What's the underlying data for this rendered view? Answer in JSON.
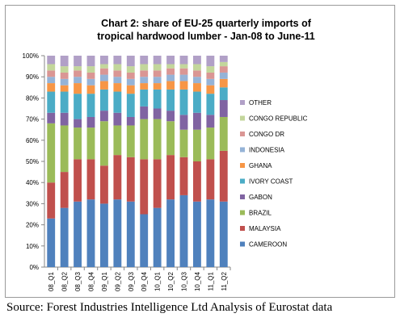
{
  "source_text": "Source: Forest Industries Intelligence Ltd Analysis of Eurostat data",
  "chart_data": {
    "type": "bar",
    "stacked": true,
    "title": "Chart 2: share of EU-25 quarterly imports of",
    "subtitle": "tropical hardwood lumber - Jan-08 to June-11",
    "xlabel": "",
    "ylabel": "",
    "ylim": [
      0,
      100
    ],
    "y_ticks": [
      "0%",
      "10%",
      "20%",
      "30%",
      "40%",
      "50%",
      "60%",
      "70%",
      "80%",
      "90%",
      "100%"
    ],
    "grid": false,
    "legend_position": "right",
    "categories": [
      "08_Q1",
      "08_Q2",
      "08_Q3",
      "08_Q4",
      "09_Q1",
      "09_Q2",
      "09_Q3",
      "09_Q4",
      "10_Q1",
      "10_Q2",
      "10_Q3",
      "10_Q4",
      "11_Q1",
      "11_Q2"
    ],
    "series": [
      {
        "name": "CAMEROON",
        "color": "#4f81bd",
        "values": [
          23,
          28,
          31,
          32,
          30,
          32,
          31,
          25,
          28,
          32,
          34,
          31,
          32,
          31
        ]
      },
      {
        "name": "MALAYSIA",
        "color": "#c0504d",
        "values": [
          17,
          17,
          20,
          19,
          18,
          21,
          21,
          26,
          23,
          21,
          18,
          19,
          19,
          24
        ]
      },
      {
        "name": "BRAZIL",
        "color": "#9bbb59",
        "values": [
          28,
          22,
          15,
          15,
          21,
          14,
          15,
          19,
          19,
          16,
          13,
          15,
          15,
          16
        ]
      },
      {
        "name": "GABON",
        "color": "#8064a2",
        "values": [
          5,
          6,
          4,
          5,
          5,
          6,
          4,
          6,
          5,
          5,
          7,
          8,
          6,
          8
        ]
      },
      {
        "name": "IVORY COAST",
        "color": "#4bacc6",
        "values": [
          10,
          10,
          12,
          11,
          10,
          10,
          11,
          8,
          9,
          10,
          12,
          10,
          10,
          6
        ]
      },
      {
        "name": "GHANA",
        "color": "#f79646",
        "values": [
          4,
          3,
          5,
          4,
          4,
          4,
          4,
          3,
          3,
          4,
          4,
          4,
          4,
          4
        ]
      },
      {
        "name": "INDONESIA",
        "color": "#95b3d7",
        "values": [
          3,
          3,
          3,
          3,
          3,
          3,
          3,
          3,
          3,
          3,
          3,
          3,
          3,
          3
        ]
      },
      {
        "name": "CONGO DR",
        "color": "#da9694",
        "values": [
          3,
          3,
          3,
          3,
          3,
          3,
          3,
          3,
          3,
          3,
          3,
          3,
          3,
          3
        ]
      },
      {
        "name": "CONGO REPUBLIC",
        "color": "#c3d69b",
        "values": [
          3,
          3,
          2,
          3,
          2,
          3,
          3,
          3,
          3,
          2,
          2,
          3,
          3,
          2
        ]
      },
      {
        "name": "OTHER",
        "color": "#b1a0c7",
        "values": [
          4,
          5,
          5,
          5,
          4,
          4,
          5,
          4,
          4,
          4,
          4,
          4,
          5,
          3
        ]
      }
    ]
  }
}
